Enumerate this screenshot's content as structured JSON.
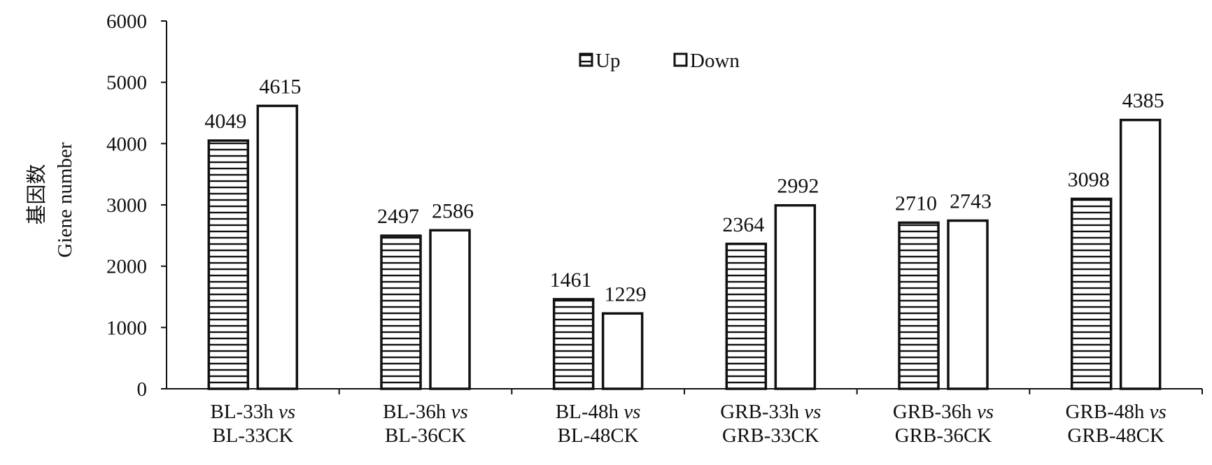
{
  "chart_data": {
    "type": "bar",
    "ylabel_cn": "基因数",
    "ylabel": "Giene number",
    "ylim": [
      0,
      6000
    ],
    "yticks": [
      "0",
      "1000",
      "2000",
      "3000",
      "4000",
      "5000",
      "6000"
    ],
    "categories": [
      {
        "line1": "BL-33h ",
        "vs": "vs",
        "line2": "BL-33CK"
      },
      {
        "line1": "BL-36h ",
        "vs": "vs",
        "line2": "BL-36CK"
      },
      {
        "line1": "BL-48h ",
        "vs": "vs",
        "line2": "BL-48CK"
      },
      {
        "line1": "GRB-33h ",
        "vs": "vs",
        "line2": "GRB-33CK"
      },
      {
        "line1": "GRB-36h ",
        "vs": "vs",
        "line2": "GRB-36CK"
      },
      {
        "line1": "GRB-48h ",
        "vs": "vs",
        "line2": "GRB-48CK"
      }
    ],
    "series": [
      {
        "name": "Up",
        "pattern": "horizontal-stripes",
        "values": [
          4049,
          2497,
          1461,
          2364,
          2710,
          3098
        ]
      },
      {
        "name": "Down",
        "pattern": "hollow",
        "values": [
          4615,
          2586,
          1229,
          2992,
          2743,
          4385
        ]
      }
    ],
    "legend_position": "top-center",
    "grid": false,
    "colors": {
      "stroke": "#111111",
      "fill": "#ffffff"
    }
  }
}
